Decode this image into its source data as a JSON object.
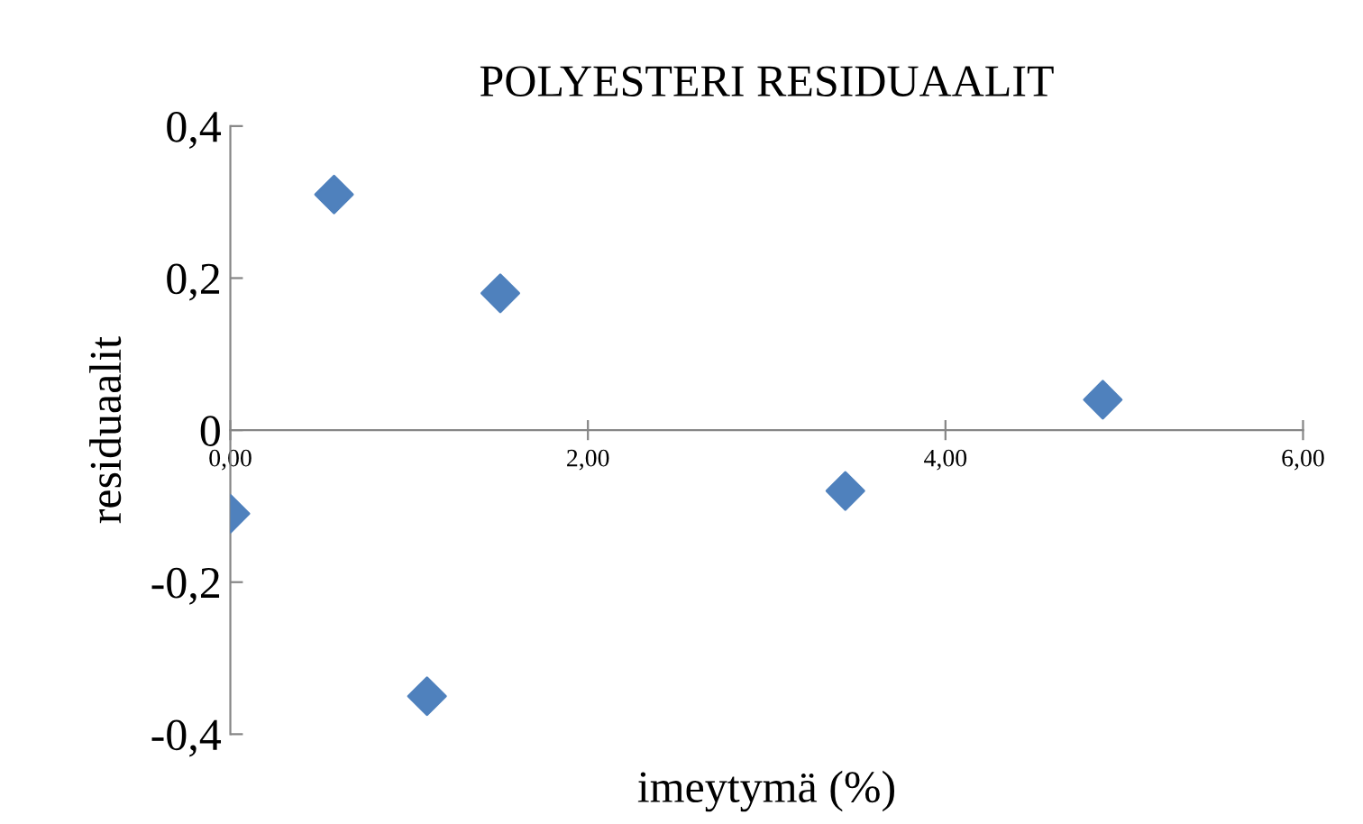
{
  "chart_data": {
    "type": "scatter",
    "title": "POLYESTERI RESIDUAALIT",
    "xlabel": "imeytymä (%)",
    "ylabel": "residuaalit",
    "x": [
      0.0,
      0.58,
      1.1,
      1.51,
      3.44,
      4.88
    ],
    "series": [
      {
        "color": "#4f81bd",
        "values": [
          -0.11,
          0.31,
          -0.35,
          0.18,
          -0.08,
          0.04
        ]
      }
    ],
    "marker": "diamond",
    "grid": false,
    "legend": false,
    "xlim": [
      0,
      6
    ],
    "xticks": [
      {
        "value": 0,
        "label": "0,00"
      },
      {
        "value": 2,
        "label": "2,00"
      },
      {
        "value": 4,
        "label": "4,00"
      },
      {
        "value": 6,
        "label": "6,00"
      }
    ],
    "ylim": [
      -0.4,
      0.4
    ],
    "yticks": [
      {
        "value": -0.4,
        "label": "-0,4"
      },
      {
        "value": -0.2,
        "label": "-0,2"
      },
      {
        "value": 0,
        "label": "0"
      },
      {
        "value": 0.2,
        "label": "0,2"
      },
      {
        "value": 0.4,
        "label": "0,4"
      }
    ]
  }
}
